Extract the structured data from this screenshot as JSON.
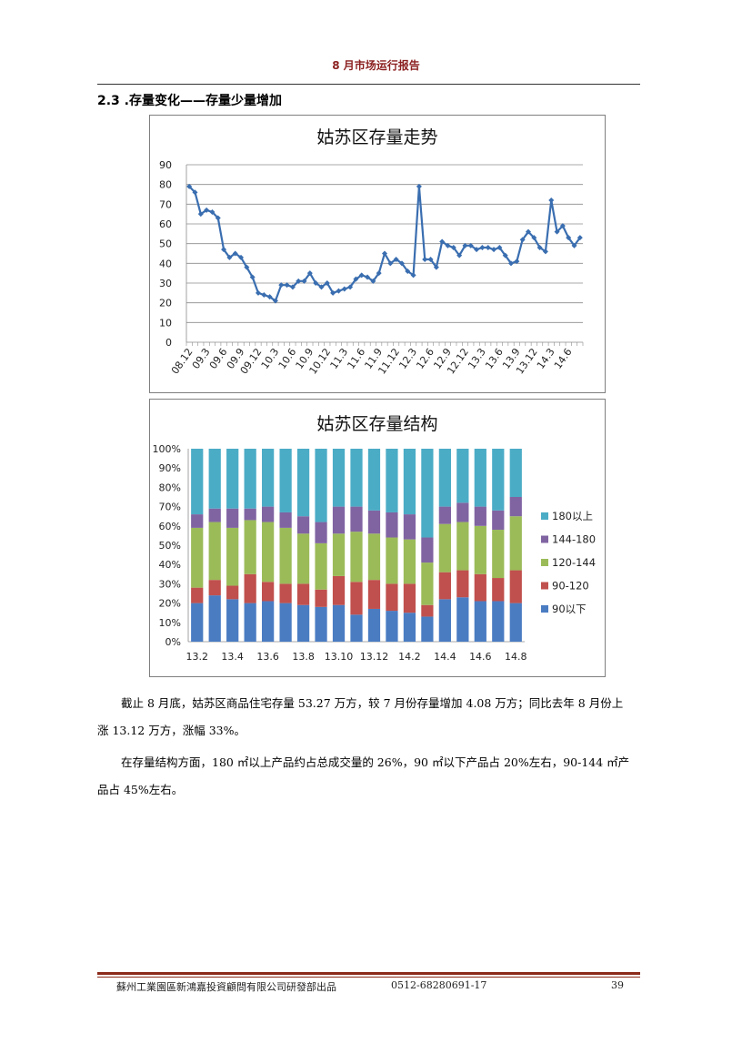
{
  "header": {
    "title": "8 月市场运行报告"
  },
  "section": {
    "heading": "2.3 .存量变化——存量少量增加"
  },
  "paragraphs": {
    "p1": "截止 8 月底，姑苏区商品住宅存量 53.27 万方，较 7 月份存量增加 4.08 万方；同比去年 8 月份上涨 13.12 万方，涨幅 33%。",
    "p2": "在存量结构方面，180 ㎡以上产品约占总成交量的 26%，90 ㎡以下产品占 20%左右，90-144 ㎡产品占 45%左右。"
  },
  "footer": {
    "company": "蘇州工業園區新鴻嘉投資顧問有限公司研發部出品",
    "phone": "0512-68280691-17",
    "page": "39"
  },
  "chart_data": [
    {
      "type": "line",
      "title": "姑苏区存量走势",
      "xlabel": "",
      "ylabel": "",
      "ylim": [
        0,
        90
      ],
      "yticks": [
        0,
        10,
        20,
        30,
        40,
        50,
        60,
        70,
        80,
        90
      ],
      "grid": true,
      "legend": "none",
      "color": "#3a6eb0",
      "x_tick_labels": [
        "08.12",
        "09.3",
        "09.6",
        "09.9",
        "09.12",
        "10.3",
        "10.6",
        "10.9",
        "10.12",
        "11.3",
        "11.6",
        "11.9",
        "11.12",
        "12.3",
        "12.6",
        "12.9",
        "12.12",
        "13.3",
        "13.6",
        "13.9",
        "13.12",
        "14.3",
        "14.6"
      ],
      "series": [
        {
          "values": [
            79,
            76,
            65,
            67,
            66,
            63,
            47,
            43,
            45,
            43,
            38,
            33,
            25,
            24,
            23,
            21,
            29,
            29,
            28,
            31,
            31,
            35,
            30,
            28,
            30,
            25,
            26,
            27,
            28,
            32,
            34,
            33,
            31,
            35,
            45,
            40,
            42,
            40,
            36,
            34,
            79,
            42,
            42,
            38,
            51,
            49,
            48,
            44,
            49,
            49,
            47,
            48,
            48,
            47,
            48,
            44,
            40,
            41,
            52,
            56,
            53,
            48,
            46,
            72,
            56,
            59,
            53,
            49,
            53
          ]
        }
      ]
    },
    {
      "type": "bar",
      "stacked": true,
      "title": "姑苏区存量结构",
      "xlabel": "",
      "ylabel": "",
      "ylim": [
        0,
        100
      ],
      "yticks": [
        "0%",
        "10%",
        "20%",
        "30%",
        "40%",
        "50%",
        "60%",
        "70%",
        "80%",
        "90%",
        "100%"
      ],
      "grid": false,
      "legend": "right",
      "x_tick_labels": [
        "13.2",
        "13.4",
        "13.6",
        "13.8",
        "13.10",
        "13.12",
        "14.2",
        "14.4",
        "14.6",
        "14.8"
      ],
      "categories": [
        "13.2",
        "13.3",
        "13.4",
        "13.5",
        "13.6",
        "13.7",
        "13.8",
        "13.9",
        "13.10",
        "13.11",
        "13.12",
        "14.1",
        "14.2",
        "14.3",
        "14.4",
        "14.5",
        "14.6",
        "14.7",
        "14.8"
      ],
      "series": [
        {
          "name": "90以下",
          "color": "#4a7cc2",
          "values": [
            20,
            24,
            22,
            20,
            21,
            20,
            19,
            18,
            19,
            14,
            17,
            16,
            15,
            13,
            22,
            23,
            21,
            21,
            20
          ]
        },
        {
          "name": "90-120",
          "color": "#c0504d",
          "values": [
            8,
            8,
            7,
            15,
            10,
            10,
            11,
            9,
            15,
            17,
            15,
            14,
            15,
            6,
            14,
            14,
            14,
            12,
            17
          ]
        },
        {
          "name": "120-144",
          "color": "#9bbb59",
          "values": [
            31,
            30,
            30,
            28,
            31,
            29,
            26,
            24,
            22,
            26,
            24,
            24,
            23,
            22,
            25,
            25,
            25,
            25,
            28
          ]
        },
        {
          "name": "144-180",
          "color": "#8064a2",
          "values": [
            7,
            7,
            10,
            6,
            8,
            8,
            9,
            11,
            14,
            13,
            12,
            13,
            13,
            13,
            9,
            10,
            10,
            10,
            10
          ]
        },
        {
          "name": "180以上",
          "color": "#4bacc6",
          "values": [
            34,
            31,
            31,
            31,
            30,
            33,
            35,
            38,
            30,
            30,
            32,
            33,
            34,
            46,
            30,
            28,
            30,
            32,
            25
          ]
        }
      ]
    }
  ]
}
